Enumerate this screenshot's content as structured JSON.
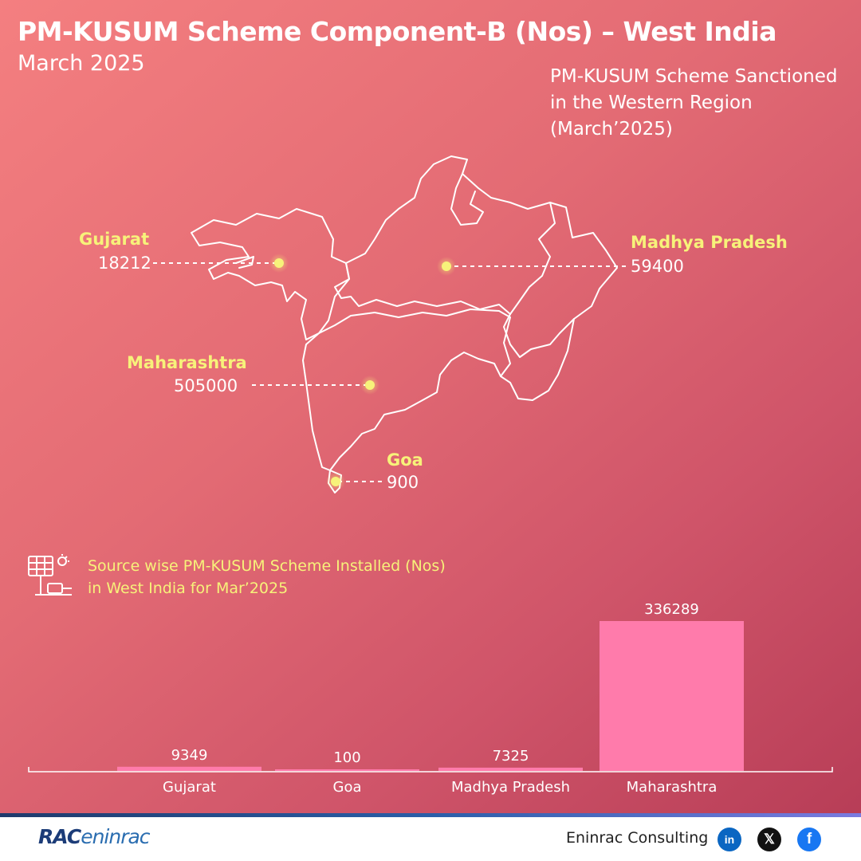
{
  "header": {
    "title": "PM-KUSUM Scheme Component-B (Nos) – West India",
    "subtitle": "March 2025"
  },
  "map": {
    "caption_lines": [
      "PM-KUSUM Scheme Sanctioned",
      "in the Western Region",
      "(March’2025)"
    ],
    "states": [
      {
        "name": "Gujarat",
        "value": "18212"
      },
      {
        "name": "Madhya Pradesh",
        "value": "59400"
      },
      {
        "name": "Maharashtra",
        "value": "505000"
      },
      {
        "name": "Goa",
        "value": "900"
      }
    ],
    "dot_color": "#f7f27a",
    "label_color": "#f7f27a"
  },
  "bar_section": {
    "caption_lines": [
      "Source wise PM-KUSUM Scheme Installed (Nos)",
      "in West India for Mar’2025"
    ],
    "icon": "solar-pump-icon"
  },
  "chart_data": {
    "type": "bar",
    "categories": [
      "Gujarat",
      "Goa",
      "Madhya Pradesh",
      "Maharashtra"
    ],
    "values": [
      9349,
      100,
      7325,
      336289
    ],
    "data_labels": [
      "9349",
      "100",
      "7325",
      "336289"
    ],
    "title": "",
    "xlabel": "",
    "ylabel": "",
    "ylim": [
      0,
      336289
    ],
    "bar_color": "#ff7bab",
    "grid": false
  },
  "footer": {
    "logo_main": "RAC",
    "logo_sub": "eninrac",
    "company": "Eninrac Consulting",
    "social": [
      {
        "name": "linkedin-icon",
        "glyph": "in"
      },
      {
        "name": "x-icon",
        "glyph": "𝕏"
      },
      {
        "name": "facebook-icon",
        "glyph": "f"
      }
    ]
  }
}
